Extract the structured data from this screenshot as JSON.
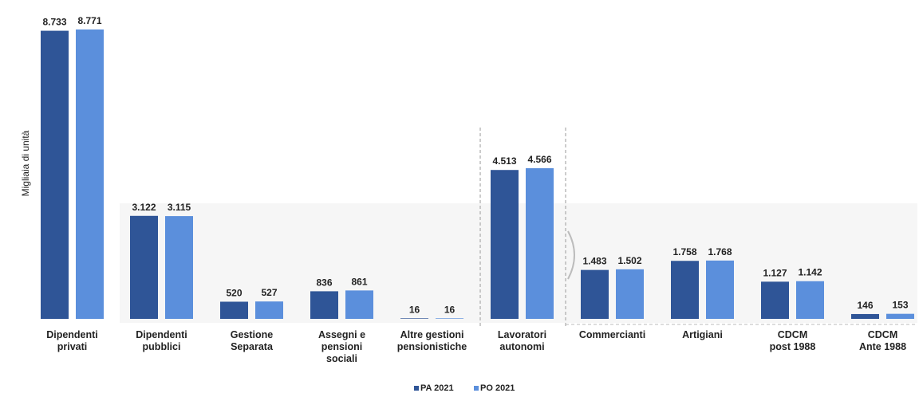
{
  "chart_data": {
    "type": "bar",
    "ylabel": "Migliaia di unità",
    "categories": [
      [
        "Dipendenti",
        "privati"
      ],
      [
        "Dipendenti",
        "pubblici"
      ],
      [
        "Gestione",
        "Separata"
      ],
      [
        "Assegni e",
        "pensioni",
        "sociali"
      ],
      [
        "Altre gestioni",
        "pensionistiche"
      ],
      [
        "Lavoratori",
        "autonomi"
      ],
      [
        "Commercianti"
      ],
      [
        "Artigiani"
      ],
      [
        "CDCM",
        "post 1988"
      ],
      [
        "CDCM",
        "Ante 1988"
      ]
    ],
    "series": [
      {
        "name": "PA 2021",
        "color": "#2f5597",
        "values": [
          8733,
          3122,
          520,
          836,
          16,
          4513,
          1483,
          1758,
          1127,
          146
        ],
        "labels": [
          "8.733",
          "3.122",
          "520",
          "836",
          "16",
          "4.513",
          "1.483",
          "1.758",
          "1.127",
          "146"
        ]
      },
      {
        "name": "PO 2021",
        "color": "#5b8fdc",
        "values": [
          8771,
          3115,
          527,
          861,
          16,
          4566,
          1502,
          1768,
          1142,
          153
        ],
        "labels": [
          "8.771",
          "3.115",
          "527",
          "861",
          "16",
          "4.566",
          "1.502",
          "1.768",
          "1.142",
          "153"
        ]
      }
    ],
    "legend": "bottom-center",
    "grid": false
  }
}
